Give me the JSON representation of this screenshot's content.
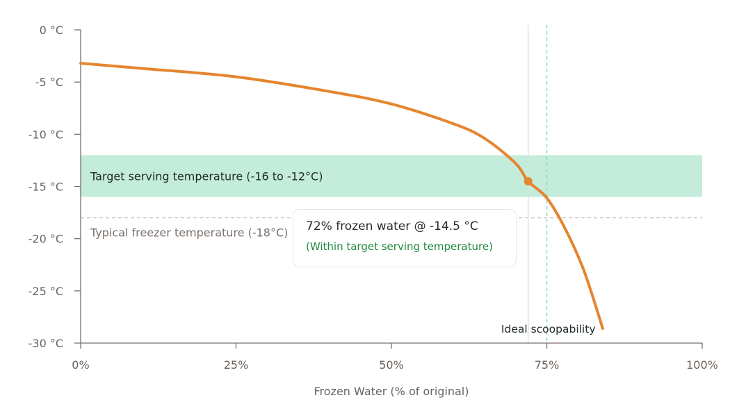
{
  "chart_data": {
    "type": "line",
    "xlabel": "Frozen Water (% of original)",
    "ylabel": "",
    "xlim": [
      0,
      100
    ],
    "ylim": [
      -30,
      0
    ],
    "x_ticks": [
      "0%",
      "25%",
      "50%",
      "75%",
      "100%"
    ],
    "x_tick_values": [
      0,
      25,
      50,
      75,
      100
    ],
    "y_ticks": [
      "0 °C",
      "-5 °C",
      "-10 °C",
      "-15 °C",
      "-20 °C",
      "-25 °C",
      "-30 °C"
    ],
    "y_tick_values": [
      0,
      -5,
      -10,
      -15,
      -20,
      -25,
      -30
    ],
    "grid": false,
    "series": [
      {
        "x": [
          0,
          10,
          25,
          40,
          50,
          60,
          65,
          70,
          72,
          75,
          78,
          81,
          84
        ],
        "y": [
          -3.2,
          -3.7,
          -4.5,
          -5.9,
          -7.1,
          -9.0,
          -10.4,
          -12.8,
          -14.5,
          -16.1,
          -19.1,
          -23.1,
          -28.6
        ],
        "color": "#e5852f"
      }
    ],
    "bands": [
      {
        "from": -16,
        "to": -12,
        "label": "Target serving temperature (-16 to -12°C)",
        "color": "#c3ecda"
      }
    ],
    "hlines": [
      {
        "y": -18,
        "label": "Typical freezer temperature (-18°C)",
        "style": "dashed",
        "color": "#c8c4c0"
      }
    ],
    "vlines": [
      {
        "x": 72,
        "style": "solid",
        "color": "#e2e0dd"
      },
      {
        "x": 75,
        "style": "dashed",
        "color": "#8fdcc2",
        "label": "Ideal scoopability"
      }
    ],
    "highlight": {
      "x": 72,
      "y": -14.5
    }
  },
  "tooltip": {
    "title": "72% frozen water @ -14.5 °C",
    "status": "(Within target serving temperature)"
  }
}
